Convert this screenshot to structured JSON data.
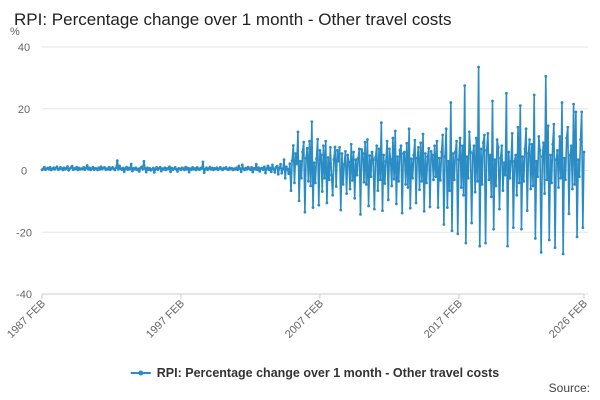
{
  "chart_data": {
    "type": "line",
    "title": "RPI: Percentage change over 1 month - Other travel costs",
    "y_label": "%",
    "source": "Source:",
    "ylim": [
      -40,
      40
    ],
    "yticks": [
      -40,
      -20,
      0,
      20,
      40
    ],
    "grid": true,
    "legend": "bottom",
    "categories": [
      "1987 FEB",
      null,
      null,
      null,
      null,
      null,
      null,
      null,
      null,
      null,
      null,
      null,
      null,
      null,
      null,
      null,
      null,
      null,
      null,
      null,
      null,
      null,
      null,
      null,
      null,
      null,
      null,
      null,
      null,
      null,
      null,
      null,
      null,
      null,
      null,
      null,
      null,
      null,
      null,
      null,
      null,
      null,
      null,
      null,
      null,
      null,
      null,
      null,
      null,
      null,
      null,
      null,
      null,
      null,
      null,
      null,
      null,
      null,
      null,
      null,
      null,
      null,
      null,
      null,
      null,
      null,
      null,
      null,
      null,
      null,
      null,
      null,
      null,
      null,
      null,
      null,
      null,
      null,
      null,
      null,
      null,
      null,
      null,
      null,
      null,
      null,
      null,
      null,
      null,
      null,
      null,
      null,
      null,
      null,
      null,
      null,
      null,
      null,
      null,
      null,
      null,
      null,
      null,
      null,
      null,
      null,
      null,
      null,
      null,
      null,
      null,
      null,
      null,
      null,
      null,
      null,
      null,
      null,
      null,
      null,
      "1997 FEB",
      null,
      null,
      null,
      null,
      null,
      null,
      null,
      null,
      null,
      null,
      null,
      null,
      null,
      null,
      null,
      null,
      null,
      null,
      null,
      null,
      null,
      null,
      null,
      null,
      null,
      null,
      null,
      null,
      null,
      null,
      null,
      null,
      null,
      null,
      null,
      null,
      null,
      null,
      null,
      null,
      null,
      null,
      null,
      null,
      null,
      null,
      null,
      null,
      null,
      null,
      null,
      null,
      null,
      null,
      null,
      null,
      null,
      null,
      null,
      null,
      null,
      null,
      null,
      null,
      null,
      null,
      null,
      null,
      null,
      null,
      null,
      null,
      null,
      null,
      null,
      null,
      null,
      null,
      null,
      null,
      null,
      null,
      null,
      null,
      null,
      null,
      null,
      null,
      null,
      null,
      null,
      null,
      null,
      null,
      null,
      null,
      null,
      null,
      null,
      null,
      null,
      null,
      null,
      null,
      null,
      null,
      null,
      null,
      null,
      null,
      null,
      null,
      null,
      null,
      null,
      null,
      null,
      null,
      null,
      "2007 FEB",
      null,
      null,
      null,
      null,
      null,
      null,
      null,
      null,
      null,
      null,
      null,
      null,
      null,
      null,
      null,
      null,
      null,
      null,
      null,
      null,
      null,
      null,
      null,
      null,
      null,
      null,
      null,
      null,
      null,
      null,
      null,
      null,
      null,
      null,
      null,
      null,
      null,
      null,
      null,
      null,
      null,
      null,
      null,
      null,
      null,
      null,
      null,
      null,
      null,
      null,
      null,
      null,
      null,
      null,
      null,
      null,
      null,
      null,
      null,
      null,
      null,
      null,
      null,
      null,
      null,
      null,
      null,
      null,
      null,
      null,
      null,
      null,
      null,
      null,
      null,
      null,
      null,
      null,
      null,
      null,
      null,
      null,
      null,
      null,
      null,
      null,
      null,
      null,
      null,
      null,
      null,
      null,
      null,
      null,
      null,
      null,
      null,
      null,
      null,
      null,
      null,
      null,
      null,
      null,
      null,
      null,
      null,
      null,
      null,
      null,
      null,
      null,
      null,
      null,
      null,
      null,
      null,
      null,
      null,
      "2017 FEB",
      null,
      null,
      null,
      null,
      null,
      null,
      null,
      null,
      null,
      null,
      null,
      null,
      null,
      null,
      null,
      null,
      null,
      null,
      null,
      null,
      null,
      null,
      null,
      null,
      null,
      null,
      null,
      null,
      null,
      null,
      null,
      null,
      null,
      null,
      null,
      null,
      null,
      null,
      null,
      null,
      null,
      null,
      null,
      null,
      null,
      null,
      null,
      null,
      null,
      null,
      null,
      null,
      null,
      null,
      null,
      null,
      null,
      null,
      null,
      null,
      null,
      null,
      null,
      null,
      null,
      null,
      null,
      null,
      null,
      null,
      null,
      null,
      null,
      null,
      null,
      null,
      null,
      null,
      null,
      null,
      null,
      null,
      null,
      null,
      null,
      null,
      null,
      null,
      null,
      null,
      null,
      null,
      null,
      null,
      null,
      null,
      null,
      null,
      null,
      null,
      null,
      null,
      null,
      null,
      null,
      null,
      null,
      "2026 FEB"
    ],
    "series": [
      {
        "name": "RPI: Percentage change over 1 month - Other travel costs",
        "color": "#2b8cc4",
        "values": [
          0.2,
          0.5,
          1.1,
          0.3,
          0.6,
          0.8,
          0.4,
          1.0,
          0.2,
          0.5,
          0.9,
          0.4,
          0.8,
          1.2,
          0.3,
          0.5,
          1.0,
          0.6,
          0.2,
          0.9,
          0.4,
          0.7,
          1.3,
          0.1,
          0.6,
          0.9,
          1.4,
          0.3,
          0.7,
          0.5,
          1.1,
          0.2,
          0.8,
          0.4,
          0.6,
          0.5,
          1.0,
          0.3,
          0.8,
          1.6,
          0.4,
          0.9,
          0.2,
          0.6,
          1.1,
          0.3,
          0.7,
          0.6,
          0.2,
          0.9,
          0.4,
          1.2,
          0.5,
          0.8,
          1.0,
          0.3,
          0.6,
          0.4,
          1.1,
          0.3,
          0.7,
          1.0,
          0.5,
          0.2,
          0.9,
          3.2,
          0.4,
          1.5,
          0.6,
          0.3,
          0.8,
          -0.4,
          0.6,
          1.1,
          0.3,
          0.8,
          0.5,
          2.1,
          -0.2,
          0.7,
          0.4,
          0.9,
          0.2,
          0.5,
          -0.3,
          0.8,
          1.2,
          0.4,
          3.0,
          0.6,
          -0.5,
          0.9,
          0.3,
          0.7,
          0.1,
          0.4,
          0.8,
          -0.6,
          0.5,
          1.0,
          0.3,
          0.7,
          1.1,
          -0.2,
          0.6,
          0.4,
          0.9,
          0.2,
          0.7,
          0.5,
          1.2,
          -0.4,
          0.8,
          0.3,
          0.6,
          1.0,
          0.4,
          -0.3,
          0.7,
          0.5,
          0.3,
          0.9,
          0.6,
          0.2,
          1.1,
          0.4,
          0.8,
          -0.5,
          0.6,
          0.3,
          1.0,
          0.4,
          0.7,
          0.2,
          1.0,
          0.5,
          0.3,
          0.8,
          0.6,
          2.8,
          -0.7,
          0.4,
          0.9,
          0.3,
          0.6,
          1.1,
          0.4,
          0.8,
          0.2,
          0.7,
          0.5,
          0.9,
          0.3,
          0.6,
          1.0,
          0.5,
          0.2,
          0.8,
          0.6,
          1.0,
          0.4,
          0.3,
          0.9,
          0.5,
          0.7,
          0.2,
          0.6,
          0.4,
          0.9,
          0.3,
          1.5,
          0.6,
          -0.4,
          1.8,
          0.5,
          0.2,
          0.8,
          0.4,
          1.1,
          0.6,
          0.3,
          1.0,
          -0.5,
          0.7,
          0.4,
          2.0,
          0.2,
          0.9,
          -0.3,
          0.6,
          0.8,
          0.3,
          1.2,
          -0.8,
          0.6,
          1.5,
          0.2,
          0.9,
          -0.4,
          1.8,
          0.5,
          -0.6,
          1.0,
          1.4,
          -1.2,
          0.8,
          2.0,
          -0.9,
          0.5,
          3.5,
          -2.5,
          1.2,
          0.4,
          -1.0,
          2.2,
          -6.5,
          3.2,
          8.1,
          -4.0,
          5.5,
          2.1,
          12.5,
          -9.8,
          3.0,
          -2.5,
          6.0,
          9.2,
          -13.5,
          4.0,
          7.2,
          -3.5,
          9.5,
          -5.0,
          15.8,
          -12.0,
          2.5,
          -4.0,
          3.8,
          10.1,
          -11.2,
          6.5,
          5.0,
          -6.8,
          8.0,
          -2.5,
          9.5,
          -10.5,
          4.2,
          -3.0,
          7.5,
          -1.5,
          -8.0,
          3.5,
          7.6,
          -5.2,
          6.5,
          3.0,
          7.5,
          -12.8,
          5.5,
          -4.5,
          2.0,
          6.2,
          -7.5,
          5.0,
          2.8,
          -6.0,
          8.5,
          -3.2,
          6.0,
          -9.0,
          3.5,
          -1.5,
          4.0,
          7.0,
          -14.2,
          6.8,
          5.5,
          -3.8,
          9.2,
          -4.5,
          10.0,
          -11.5,
          4.8,
          -2.0,
          6.0,
          3.5,
          -12.5,
          4.2,
          8.0,
          -6.5,
          7.0,
          -3.0,
          15.5,
          -13.0,
          5.0,
          -4.2,
          3.0,
          9.5,
          -9.5,
          7.0,
          3.5,
          -5.0,
          10.5,
          -2.8,
          12.8,
          -10.8,
          4.5,
          -3.5,
          6.5,
          8.0,
          -13.8,
          5.5,
          6.0,
          -4.5,
          8.8,
          -5.5,
          13.5,
          -12.2,
          3.8,
          -2.5,
          5.0,
          9.8,
          -10.5,
          4.0,
          7.5,
          -6.2,
          9.0,
          -3.5,
          11.8,
          -13.2,
          5.5,
          -4.0,
          4.5,
          7.2,
          -11.8,
          6.2,
          5.0,
          -3.0,
          8.0,
          -2.0,
          9.5,
          -12.0,
          4.0,
          -3.2,
          6.0,
          11.5,
          -17.5,
          4.5,
          13.5,
          -12.0,
          3.0,
          -6.5,
          22.0,
          -19.5,
          5.5,
          -3.0,
          6.0,
          9.5,
          -20.5,
          3.5,
          10.5,
          -5.5,
          8.0,
          -8.0,
          27.5,
          -23.5,
          4.5,
          -2.5,
          12.5,
          6.0,
          -17.0,
          5.5,
          8.0,
          -7.0,
          10.5,
          -3.5,
          33.5,
          -24.5,
          7.0,
          -4.5,
          9.0,
          11.5,
          -23.5,
          6.5,
          12.0,
          -3.0,
          5.0,
          -8.5,
          22.5,
          -19.0,
          3.5,
          -5.0,
          10.0,
          7.5,
          -12.5,
          4.0,
          8.0,
          -6.5,
          2.5,
          -1.5,
          25.0,
          -24.5,
          6.0,
          -2.5,
          3.0,
          12.0,
          -18.5,
          3.0,
          5.0,
          -8.0,
          14.0,
          -4.0,
          21.0,
          -19.0,
          4.5,
          -3.5,
          7.0,
          13.5,
          -13.0,
          5.5,
          10.0,
          -6.0,
          8.5,
          -5.0,
          24.5,
          -22.0,
          3.0,
          -2.0,
          11.0,
          6.5,
          -26.5,
          4.5,
          9.0,
          -7.5,
          30.5,
          -3.0,
          14.5,
          -22.5,
          5.0,
          -4.0,
          8.5,
          15.0,
          -25.0,
          3.5,
          6.5,
          -5.5,
          11.0,
          -2.5,
          22.0,
          -27.0,
          4.0,
          -3.0,
          10.5,
          14.0,
          -14.0,
          5.0,
          8.0,
          -6.0,
          21.5,
          -4.5,
          19.0,
          -21.5,
          3.5,
          -2.0,
          10.0,
          19.0,
          -18.5,
          6.0
        ]
      }
    ]
  }
}
